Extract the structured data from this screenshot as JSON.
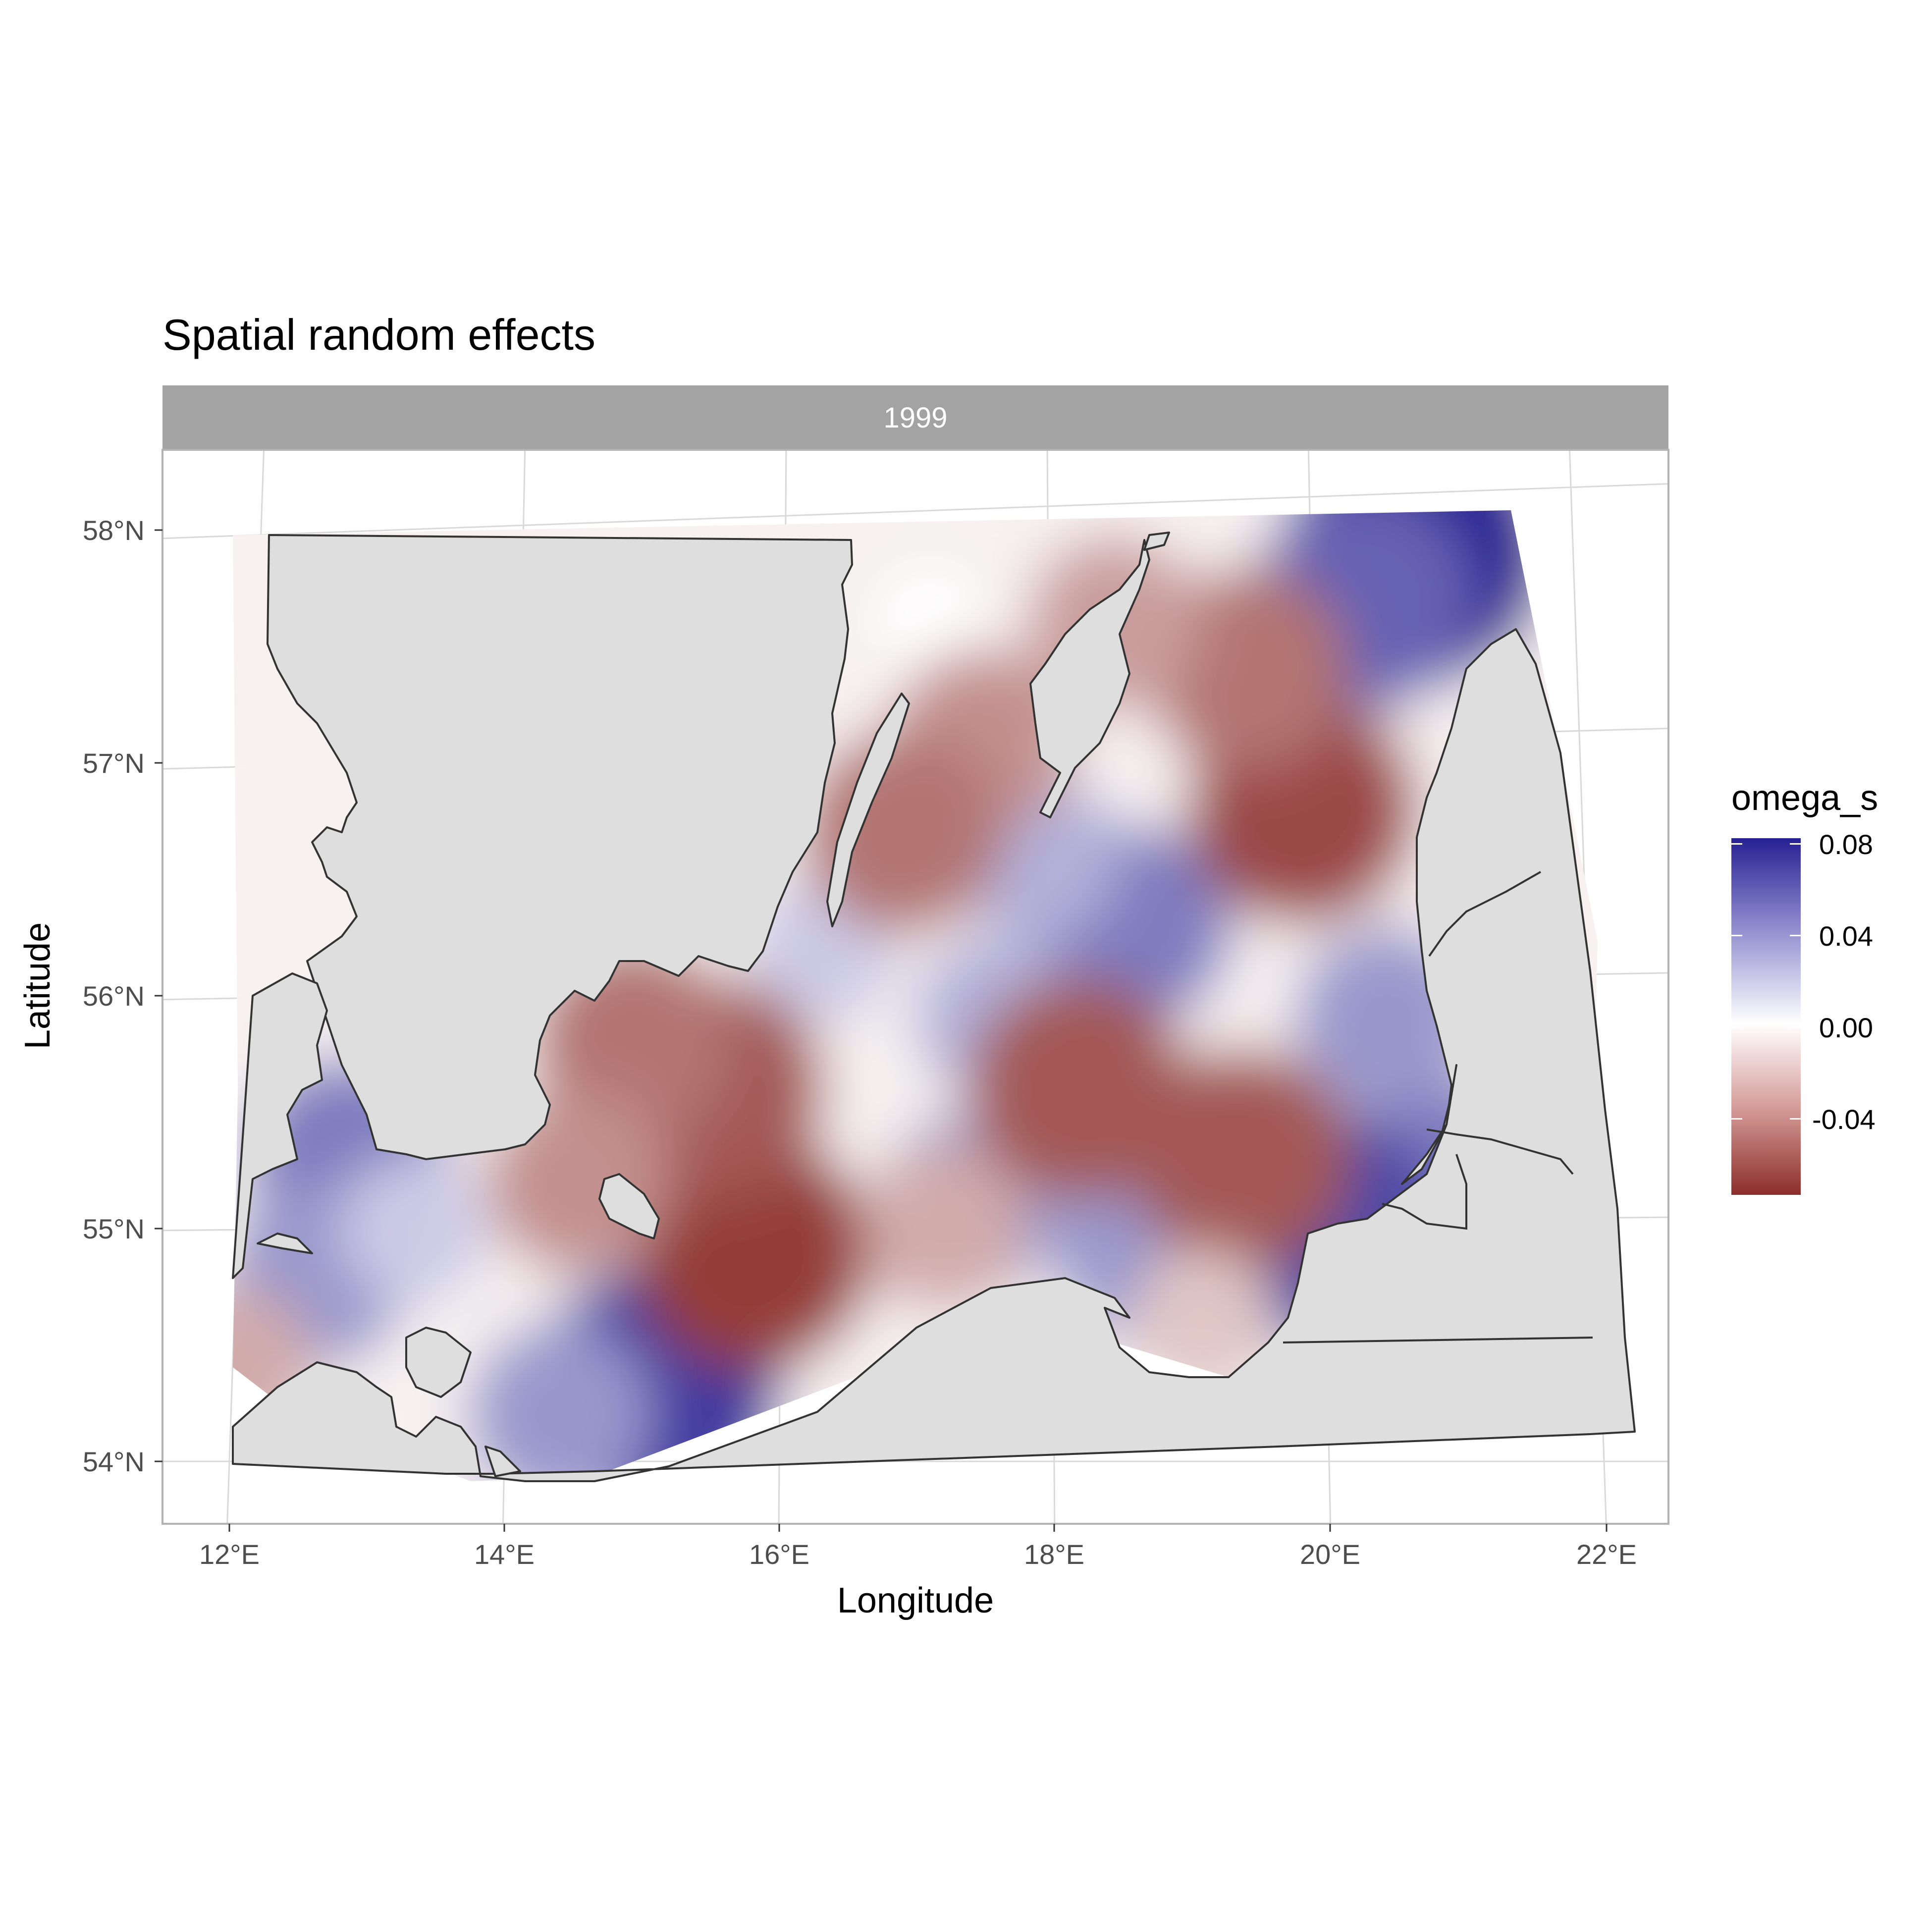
{
  "title": "Spatial random effects",
  "facet_label": "1999",
  "xlabel": "Longitude",
  "ylabel": "Latitude",
  "x_ticks": [
    "12°E",
    "14°E",
    "16°E",
    "18°E",
    "20°E",
    "22°E"
  ],
  "y_ticks": [
    "58°N",
    "57°N",
    "56°N",
    "55°N",
    "54°N"
  ],
  "legend": {
    "title": "omega_s",
    "labels": [
      "0.08",
      "0.04",
      "0.00",
      "-0.04"
    ]
  },
  "colors": {
    "high": "#262193",
    "mid": "#ffffff",
    "low": "#8c2e2b",
    "land": "#dedede",
    "coast": "#333333",
    "strip": "#a3a3a3"
  },
  "chart_data": {
    "type": "heatmap",
    "title": "Spatial random effects",
    "xlabel": "Longitude",
    "ylabel": "Latitude",
    "xlim": [
      11.5,
      22.5
    ],
    "ylim": [
      53.7,
      58.4
    ],
    "fill_name": "omega_s",
    "fill_range": [
      -0.075,
      0.085
    ],
    "panel": "1999",
    "grid": true,
    "legend_position": "right",
    "anomalies": [
      {
        "lon": 20.8,
        "lat": 57.9,
        "value": 0.085
      },
      {
        "lon": 20.4,
        "lat": 57.7,
        "value": 0.06
      },
      {
        "lon": 15.1,
        "lat": 54.3,
        "value": 0.075
      },
      {
        "lon": 14.4,
        "lat": 54.2,
        "value": 0.04
      },
      {
        "lon": 18.6,
        "lat": 56.3,
        "value": 0.05
      },
      {
        "lon": 17.9,
        "lat": 56.6,
        "value": 0.03
      },
      {
        "lon": 17.6,
        "lat": 55.9,
        "value": 0.03
      },
      {
        "lon": 12.8,
        "lat": 55.3,
        "value": 0.05
      },
      {
        "lon": 12.6,
        "lat": 54.8,
        "value": 0.04
      },
      {
        "lon": 13.3,
        "lat": 55.0,
        "value": 0.02
      },
      {
        "lon": 20.9,
        "lat": 55.2,
        "value": 0.05
      },
      {
        "lon": 20.0,
        "lat": 55.0,
        "value": 0.07
      },
      {
        "lon": 20.5,
        "lat": 55.9,
        "value": 0.04
      },
      {
        "lon": 17.4,
        "lat": 55.1,
        "value": 0.04
      },
      {
        "lon": 18.7,
        "lat": 54.9,
        "value": 0.04
      },
      {
        "lon": 16.3,
        "lat": 56.2,
        "value": 0.02
      },
      {
        "lon": 17.1,
        "lat": 57.6,
        "value": 0.0
      },
      {
        "lon": 17.5,
        "lat": 57.1,
        "value": -0.04
      },
      {
        "lon": 16.9,
        "lat": 56.7,
        "value": -0.05
      },
      {
        "lon": 19.9,
        "lat": 56.8,
        "value": -0.065
      },
      {
        "lon": 19.5,
        "lat": 57.4,
        "value": -0.05
      },
      {
        "lon": 18.5,
        "lat": 57.6,
        "value": -0.035
      },
      {
        "lon": 15.8,
        "lat": 54.9,
        "value": -0.07
      },
      {
        "lon": 15.5,
        "lat": 55.6,
        "value": -0.06
      },
      {
        "lon": 14.9,
        "lat": 55.8,
        "value": -0.05
      },
      {
        "lon": 18.2,
        "lat": 55.6,
        "value": -0.06
      },
      {
        "lon": 19.4,
        "lat": 55.3,
        "value": -0.06
      },
      {
        "lon": 14.5,
        "lat": 55.2,
        "value": -0.04
      },
      {
        "lon": 17.2,
        "lat": 55.0,
        "value": -0.03
      },
      {
        "lon": 19.1,
        "lat": 54.6,
        "value": -0.02
      },
      {
        "lon": 12.0,
        "lat": 54.4,
        "value": -0.03
      }
    ]
  }
}
